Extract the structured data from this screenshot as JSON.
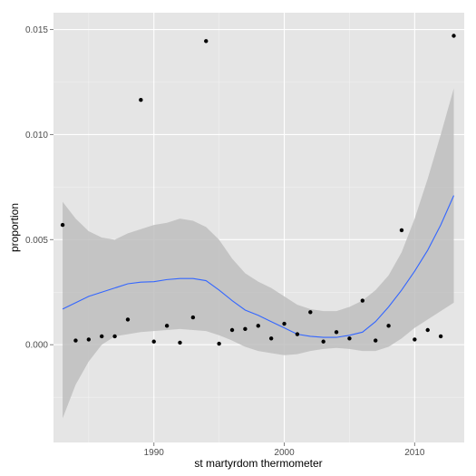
{
  "chart_data": {
    "type": "scatter",
    "xlabel": "st martyrdom thermometer",
    "ylabel": "proportion",
    "xlim": [
      1982.3,
      2013.8
    ],
    "ylim": [
      -0.00465,
      0.0158
    ],
    "x_ticks": [
      1990,
      2000,
      2010
    ],
    "x_tick_labels": [
      "1990",
      "2000",
      "2010"
    ],
    "y_ticks": [
      0.0,
      0.005,
      0.01,
      0.015
    ],
    "y_tick_labels": [
      "0.000",
      "0.005",
      "0.010",
      "0.015"
    ],
    "grid": true,
    "legend": "none",
    "points": {
      "x": [
        1983,
        1984,
        1985,
        1986,
        1987,
        1988,
        1989,
        1990,
        1991,
        1992,
        1993,
        1994,
        1995,
        1996,
        1997,
        1998,
        1999,
        2000,
        2001,
        2002,
        2003,
        2004,
        2005,
        2006,
        2007,
        2008,
        2009,
        2010,
        2011,
        2012,
        2013
      ],
      "y": [
        0.0057,
        0.0002,
        0.00025,
        0.0004,
        0.0004,
        0.0012,
        0.01165,
        0.00015,
        0.0009,
        0.0001,
        0.0013,
        0.01445,
        5e-05,
        0.0007,
        0.00075,
        0.0009,
        0.0003,
        0.001,
        0.0005,
        0.00155,
        0.00015,
        0.0006,
        0.0003,
        0.0021,
        0.0002,
        0.0009,
        0.00545,
        0.00025,
        0.0007,
        0.0004,
        0.0147
      ]
    },
    "smooth": {
      "x": [
        1983,
        1984,
        1985,
        1986,
        1987,
        1988,
        1989,
        1990,
        1991,
        1992,
        1993,
        1994,
        1995,
        1996,
        1997,
        1998,
        1999,
        2000,
        2001,
        2002,
        2003,
        2004,
        2005,
        2006,
        2007,
        2008,
        2009,
        2010,
        2011,
        2012,
        2013
      ],
      "y": [
        0.0017,
        0.002,
        0.0023,
        0.0025,
        0.0027,
        0.0029,
        0.00298,
        0.003,
        0.0031,
        0.00315,
        0.00315,
        0.00305,
        0.0026,
        0.0021,
        0.00165,
        0.0014,
        0.0011,
        0.0008,
        0.0005,
        0.0004,
        0.00035,
        0.00035,
        0.00045,
        0.0006,
        0.0011,
        0.0018,
        0.0026,
        0.0035,
        0.0045,
        0.0057,
        0.0071
      ],
      "lower": [
        -0.0035,
        -0.0019,
        -0.0008,
        0.0,
        0.0004,
        0.0005,
        0.0006,
        0.00065,
        0.0007,
        0.00075,
        0.0007,
        0.00065,
        0.00045,
        0.0002,
        -0.0001,
        -0.0003,
        -0.0004,
        -0.0005,
        -0.00045,
        -0.0003,
        -0.0002,
        -0.00015,
        -0.0002,
        -0.0003,
        -0.0003,
        -0.0001,
        0.0003,
        0.0008,
        0.0012,
        0.0016,
        0.002
      ],
      "upper": [
        0.0068,
        0.006,
        0.0054,
        0.0051,
        0.005,
        0.0053,
        0.0055,
        0.0057,
        0.0058,
        0.006,
        0.0059,
        0.0056,
        0.005,
        0.0041,
        0.0034,
        0.003,
        0.0027,
        0.0023,
        0.0019,
        0.0017,
        0.0016,
        0.0016,
        0.0018,
        0.0021,
        0.0026,
        0.0033,
        0.0044,
        0.006,
        0.0079,
        0.01,
        0.0122
      ]
    },
    "colors": {
      "panel": "#e5e5e5",
      "grid": "#ffffff",
      "ribbon": "#bebebe",
      "line": "#3366ff",
      "point": "#000000"
    }
  }
}
